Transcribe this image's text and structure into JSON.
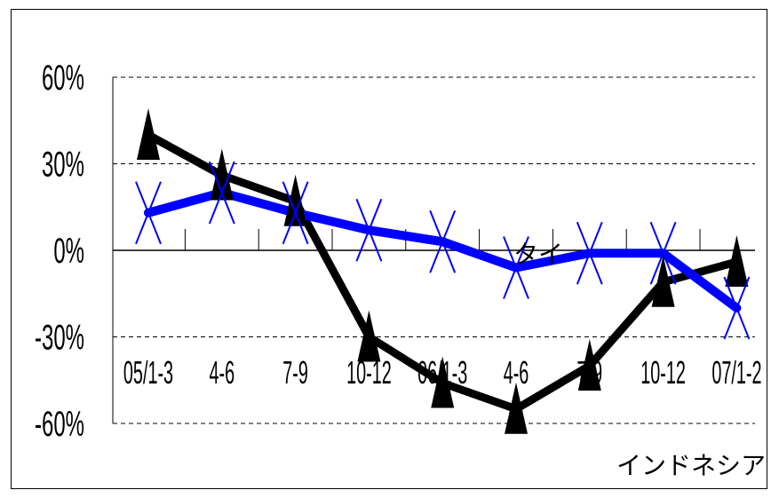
{
  "chart_data": {
    "type": "line",
    "categories": [
      "05/1-3",
      "4-6",
      "7-9",
      "10-12",
      "06/1-3",
      "4-6",
      "7-9",
      "10-12",
      "07/1-2"
    ],
    "ytick_labels": [
      "60%",
      "30%",
      "0%",
      "-30%",
      "-60%"
    ],
    "ytick_values": [
      60,
      30,
      0,
      -30,
      -60
    ],
    "ylim": [
      -60,
      60
    ],
    "grid": true,
    "series": [
      {
        "name": "インドネシア",
        "color": "#000000",
        "marker": "triangle",
        "values": [
          40,
          26,
          17,
          -30,
          -46,
          -55,
          -40,
          -11,
          -4
        ]
      },
      {
        "name": "タイ",
        "color": "#0000ff",
        "marker": "x",
        "values": [
          13,
          20,
          13,
          7,
          3,
          -6,
          -1,
          -1,
          -20
        ]
      }
    ]
  }
}
